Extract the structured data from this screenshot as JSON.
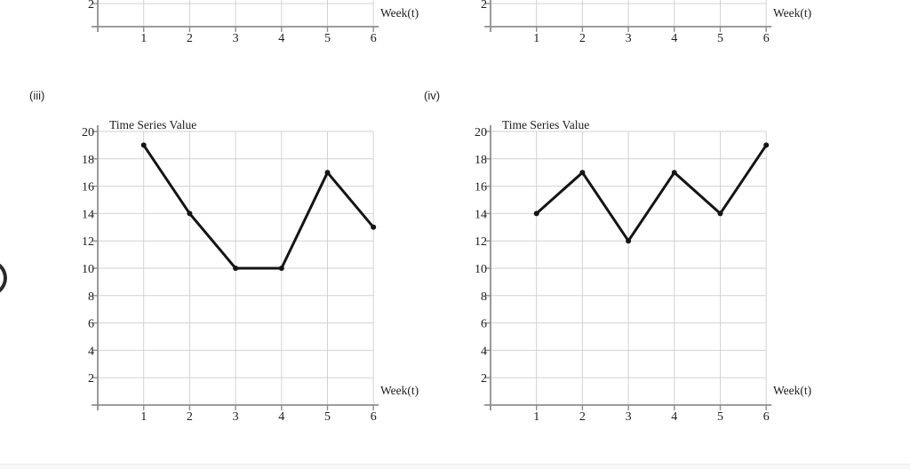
{
  "labels": {
    "chart_iii": "(iii)",
    "chart_iv": "(iv)"
  },
  "colors": {
    "page_bg": "#ffffff",
    "axis": "#8f8f8f",
    "grid": "#d2d2d2",
    "line": "#141414",
    "text": "#1c1c1c",
    "bottom_strip": "#f7f7f8",
    "bottom_strip_border": "#ebebeb"
  },
  "chart_data": [
    {
      "id": "chart-i-partial",
      "position": "top-left",
      "type": "line",
      "title": "",
      "xlabel": "Week(t)",
      "x_tick_labels": [
        "1",
        "2",
        "3",
        "4",
        "5",
        "6"
      ],
      "visible_y_tick_labels": [
        "2"
      ],
      "series": []
    },
    {
      "id": "chart-ii-partial",
      "position": "top-right",
      "type": "line",
      "title": "",
      "xlabel": "Week(t)",
      "x_tick_labels": [
        "1",
        "2",
        "3",
        "4",
        "5",
        "6"
      ],
      "visible_y_tick_labels": [
        "2"
      ],
      "series": []
    },
    {
      "id": "chart-iii",
      "label": "(iii)",
      "type": "line",
      "title": "Time Series Value",
      "xlabel": "Week(t)",
      "x": [
        1,
        2,
        3,
        4,
        5,
        6
      ],
      "values": [
        19,
        14,
        10,
        10,
        17,
        13
      ],
      "y_ticks": [
        2,
        4,
        6,
        8,
        10,
        12,
        14,
        16,
        18,
        20
      ],
      "ylim": [
        0,
        20
      ],
      "xlim": [
        0,
        6
      ],
      "grid": true,
      "marker": "dot",
      "legend": "none"
    },
    {
      "id": "chart-iv",
      "label": "(iv)",
      "type": "line",
      "title": "Time Series Value",
      "xlabel": "Week(t)",
      "x": [
        1,
        2,
        3,
        4,
        5,
        6
      ],
      "values": [
        14,
        17,
        12,
        17,
        14,
        19
      ],
      "y_ticks": [
        2,
        4,
        6,
        8,
        10,
        12,
        14,
        16,
        18,
        20
      ],
      "ylim": [
        0,
        20
      ],
      "xlim": [
        0,
        6
      ],
      "grid": true,
      "marker": "dot",
      "legend": "none"
    }
  ]
}
